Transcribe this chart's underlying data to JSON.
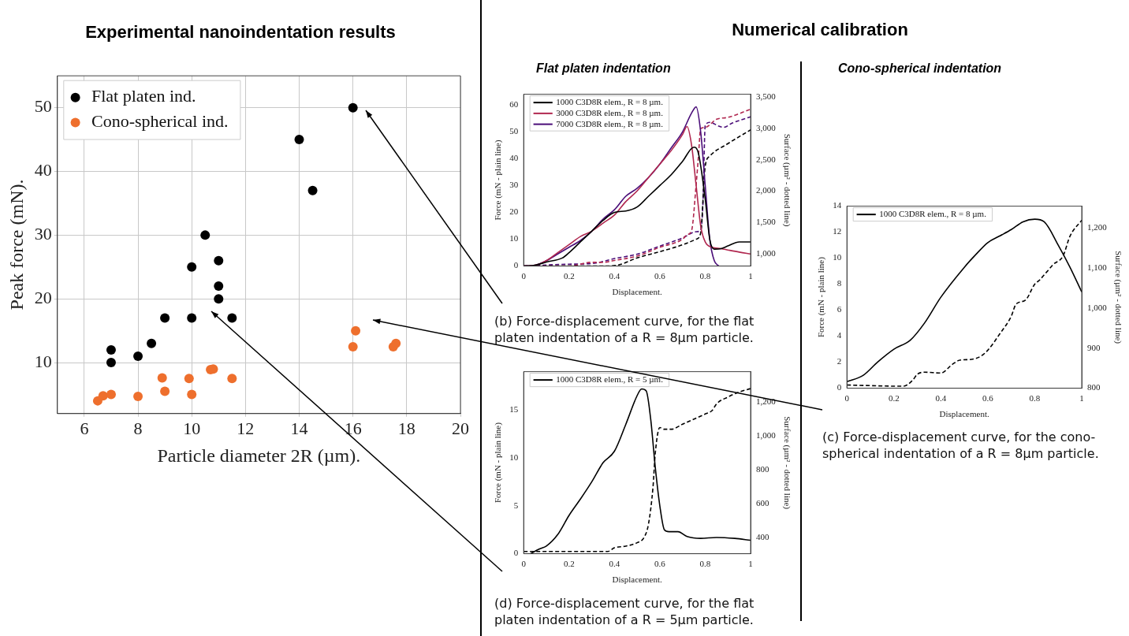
{
  "chart_data": [
    {
      "type": "scatter",
      "title": "Experimental nanoindentation results",
      "xlabel": "Particle diameter 2R (µm).",
      "ylabel": "Peak force (mN).",
      "xlim": [
        5,
        20
      ],
      "xticks": [
        6,
        8,
        10,
        12,
        14,
        16,
        18,
        20
      ],
      "ylim": [
        2,
        55
      ],
      "yticks": [
        10,
        20,
        30,
        40,
        50
      ],
      "grid": true,
      "legend": "top left",
      "marker": "circle",
      "series": [
        {
          "name": "Flat platen ind.",
          "color": "#000000",
          "x": [
            16,
            14,
            14.5,
            10.5,
            10,
            11,
            11,
            11,
            9,
            10,
            11.5,
            8.5,
            7,
            7,
            8
          ],
          "values": [
            50,
            45,
            37,
            30,
            25,
            26,
            22,
            20,
            17,
            17,
            17,
            13,
            12,
            10,
            11
          ]
        },
        {
          "name": "Cono-spherical ind.",
          "color": "#ee6f2d",
          "x": [
            6.5,
            6.7,
            7,
            8,
            8.9,
            9,
            9.9,
            10,
            10.7,
            10.8,
            11.5,
            16,
            16.1,
            17.5,
            17.6
          ],
          "values": [
            4,
            4.8,
            5,
            4.7,
            7.6,
            5.5,
            7.5,
            5,
            8.9,
            9,
            7.5,
            12.5,
            15,
            12.5,
            13
          ]
        }
      ]
    },
    {
      "type": "line",
      "title": "Numerical calibration",
      "subtitle": "Flat platen indentation",
      "xlabel": "Displacement.",
      "ylabel": "Force (mN - plain line)",
      "y2label": "Surface (µm² - dotted line)",
      "xlim": [
        0,
        1
      ],
      "xticks": [
        0,
        0.2,
        0.4,
        0.6,
        0.8,
        1
      ],
      "ylim": [
        0,
        64
      ],
      "yticks": [
        0,
        10,
        20,
        30,
        40,
        50,
        60
      ],
      "y2lim": [
        800,
        3550
      ],
      "y2ticks": [
        {
          "value": 1000,
          "label": "1,000"
        },
        {
          "value": 1500,
          "label": "1,500"
        },
        {
          "value": 2000,
          "label": "2,000"
        },
        {
          "value": 2500,
          "label": "2,500"
        },
        {
          "value": 3000,
          "label": "3,000"
        },
        {
          "value": 3500,
          "label": "3,500"
        }
      ],
      "legend": "top left",
      "marker": "none",
      "line_style": "solid",
      "annotations": [
        "(b) Force-displacement curve, for the flat platen indentation of a R = 8µm particle."
      ],
      "series": [
        {
          "name": "1000 C3D8R elem., R = 8 µm.",
          "color": "#000000",
          "x": [
            0,
            0.05,
            0.1,
            0.17,
            0.2,
            0.25,
            0.3,
            0.35,
            0.4,
            0.45,
            0.5,
            0.55,
            0.6,
            0.65,
            0.7,
            0.75,
            0.77,
            0.8,
            0.82,
            0.84,
            0.87,
            0.9,
            0.95,
            1
          ],
          "values": [
            0,
            0.3,
            1.5,
            3,
            5,
            9,
            13,
            17,
            20,
            20.5,
            22,
            26,
            30,
            34,
            39,
            44.3,
            42,
            25,
            10,
            6.3,
            6.5,
            7.5,
            9,
            9
          ]
        },
        {
          "name": "3000 C3D8R elem., R = 8 µm.",
          "color": "#b0274f",
          "x": [
            0,
            0.05,
            0.1,
            0.15,
            0.2,
            0.25,
            0.3,
            0.35,
            0.4,
            0.45,
            0.5,
            0.55,
            0.6,
            0.65,
            0.7,
            0.72,
            0.74,
            0.76,
            0.78,
            0.8,
            0.83,
            0.87,
            0.9,
            0.95,
            1
          ],
          "values": [
            0,
            0.3,
            2,
            5,
            8,
            11,
            13,
            16,
            19,
            24,
            28,
            33,
            38,
            43,
            49,
            52,
            45,
            30,
            15,
            9,
            7,
            6.5,
            6,
            5.2,
            4.5
          ]
        },
        {
          "name": "7000 C3D8R elem., R = 8 µm.",
          "color": "#4a0d78",
          "x": [
            0,
            0.05,
            0.1,
            0.15,
            0.2,
            0.25,
            0.3,
            0.35,
            0.4,
            0.45,
            0.5,
            0.55,
            0.6,
            0.65,
            0.7,
            0.74,
            0.76,
            0.78,
            0.8,
            0.82,
            0.84,
            0.86
          ],
          "values": [
            0,
            0.3,
            2,
            4.5,
            7,
            9.5,
            13,
            17.5,
            21,
            26,
            29,
            33,
            38,
            44,
            50,
            57,
            59.3,
            50,
            30,
            10,
            2,
            0
          ]
        },
        {
          "color": "#000000",
          "axis": "y2",
          "line_style": "dashed",
          "x": [
            0,
            0.35,
            0.42,
            0.5,
            0.6,
            0.7,
            0.76,
            0.78,
            0.8,
            0.82,
            0.9,
            1
          ],
          "values": [
            800,
            800,
            820,
            930,
            1030,
            1140,
            1230,
            1330,
            2400,
            2560,
            2760,
            2980
          ]
        },
        {
          "color": "#b0274f",
          "axis": "y2",
          "line_style": "dashed",
          "x": [
            0,
            0.2,
            0.3,
            0.35,
            0.4,
            0.5,
            0.6,
            0.7,
            0.72,
            0.74,
            0.76,
            0.77,
            0.78,
            0.8,
            0.85,
            0.9,
            1
          ],
          "values": [
            800,
            800,
            860,
            860,
            890,
            960,
            1100,
            1230,
            1300,
            1370,
            2100,
            2550,
            3000,
            3020,
            3150,
            3180,
            3310
          ]
        },
        {
          "color": "#4a0d78",
          "axis": "y2",
          "line_style": "dashed",
          "x": [
            0,
            0.2,
            0.3,
            0.4,
            0.5,
            0.6,
            0.7,
            0.76,
            0.78,
            0.79,
            0.8,
            0.82,
            0.86,
            0.88,
            0.92,
            1
          ],
          "values": [
            800,
            830,
            840,
            920,
            990,
            1120,
            1250,
            1350,
            1370,
            1800,
            3050,
            3100,
            3040,
            3020,
            3090,
            3190
          ]
        }
      ]
    },
    {
      "type": "line",
      "subtitle": "Cono-spherical indentation",
      "xlabel": "Displacement.",
      "ylabel": "Force (mN - plain line)",
      "y2label": "Surface (µm² - dotted line)",
      "xlim": [
        0,
        1
      ],
      "xticks": [
        0,
        0.2,
        0.4,
        0.6,
        0.8,
        1
      ],
      "ylim": [
        0,
        14
      ],
      "yticks": [
        0,
        2,
        4,
        6,
        8,
        10,
        12,
        14
      ],
      "y2lim": [
        800,
        1255
      ],
      "y2ticks": [
        800,
        900,
        {
          "value": 1000,
          "label": "1,000"
        },
        {
          "value": 1100,
          "label": "1,100"
        },
        {
          "value": 1200,
          "label": "1,200"
        }
      ],
      "legend": "top left",
      "marker": "none",
      "line_style": "solid",
      "annotations": [
        "(c) Force-displacement curve, for the cono-spherical indentation of a R = 8µm particle."
      ],
      "series": [
        {
          "name": "1000 C3D8R elem., R = 8 µm.",
          "color": "#000000",
          "x": [
            0,
            0.07,
            0.13,
            0.2,
            0.27,
            0.33,
            0.4,
            0.5,
            0.55,
            0.6,
            0.65,
            0.7,
            0.75,
            0.8,
            0.84,
            0.9,
            0.95,
            1
          ],
          "values": [
            0.5,
            1,
            2,
            3,
            3.7,
            5,
            7,
            9.3,
            10.3,
            11.2,
            11.7,
            12.2,
            12.8,
            13,
            12.8,
            11,
            9.3,
            7.4
          ]
        },
        {
          "color": "#000000",
          "axis": "y2",
          "line_style": "dashed",
          "x": [
            0,
            0.24,
            0.28,
            0.3,
            0.33,
            0.4,
            0.45,
            0.48,
            0.53,
            0.57,
            0.6,
            0.65,
            0.7,
            0.72,
            0.76,
            0.8,
            0.82,
            0.85,
            0.88,
            0.92,
            0.95,
            1
          ],
          "values": [
            808,
            805,
            820,
            835,
            840,
            838,
            860,
            870,
            872,
            880,
            895,
            935,
            980,
            1010,
            1020,
            1060,
            1070,
            1090,
            1110,
            1130,
            1180,
            1220
          ]
        }
      ]
    },
    {
      "type": "line",
      "xlabel": "Displacement.",
      "ylabel": "Force (mN - plain line)",
      "y2label": "Surface (µm² - dotted line)",
      "xlim": [
        0,
        1
      ],
      "xticks": [
        0,
        0.2,
        0.4,
        0.6,
        0.8,
        1
      ],
      "ylim": [
        0,
        19
      ],
      "yticks": [
        0,
        5,
        10,
        15
      ],
      "y2lim": [
        305,
        1380
      ],
      "y2ticks": [
        400,
        600,
        800,
        {
          "value": 1000,
          "label": "1,000"
        },
        {
          "value": 1200,
          "label": "1,200"
        }
      ],
      "legend": "top left",
      "marker": "none",
      "line_style": "solid",
      "annotations": [
        "(d) Force-displacement curve, for the flat platen indentation of a R = 5µm particle."
      ],
      "series": [
        {
          "name": "1000 C3D8R elem., R = 5 µm.",
          "color": "#000000",
          "x": [
            0.03,
            0.07,
            0.1,
            0.15,
            0.2,
            0.25,
            0.3,
            0.35,
            0.4,
            0.45,
            0.5,
            0.52,
            0.54,
            0.56,
            0.58,
            0.6,
            0.62,
            0.64,
            0.68,
            0.72,
            0.78,
            0.85,
            0.93,
            1
          ],
          "values": [
            0,
            0.5,
            0.8,
            2,
            4,
            5.7,
            7.5,
            9.5,
            10.7,
            13.5,
            16.5,
            17.2,
            17,
            14,
            9,
            5,
            2.5,
            2.3,
            2.3,
            1.8,
            1.6,
            1.7,
            1.6,
            1.4
          ]
        },
        {
          "color": "#000000",
          "axis": "y2",
          "line_style": "dashed",
          "x": [
            0,
            0.37,
            0.4,
            0.45,
            0.5,
            0.53,
            0.55,
            0.57,
            0.58,
            0.6,
            0.62,
            0.65,
            0.7,
            0.8,
            0.83,
            0.85,
            0.9,
            0.95,
            1
          ],
          "values": [
            318,
            318,
            340,
            350,
            370,
            400,
            480,
            700,
            900,
            1050,
            1040,
            1040,
            1070,
            1130,
            1150,
            1190,
            1230,
            1260,
            1280
          ]
        }
      ]
    }
  ]
}
